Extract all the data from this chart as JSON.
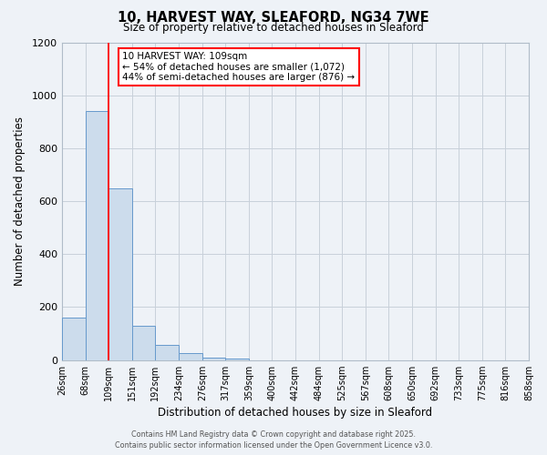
{
  "title": "10, HARVEST WAY, SLEAFORD, NG34 7WE",
  "subtitle": "Size of property relative to detached houses in Sleaford",
  "xlabel": "Distribution of detached houses by size in Sleaford",
  "ylabel": "Number of detached properties",
  "bar_values": [
    160,
    940,
    650,
    130,
    58,
    28,
    10,
    5,
    0,
    0,
    0,
    0,
    0,
    0,
    0,
    0,
    0,
    0,
    0,
    0
  ],
  "bin_edges": [
    26,
    68,
    109,
    151,
    192,
    234,
    276,
    317,
    359,
    400,
    442,
    484,
    525,
    567,
    608,
    650,
    692,
    733,
    775,
    816,
    858
  ],
  "tick_labels": [
    "26sqm",
    "68sqm",
    "109sqm",
    "151sqm",
    "192sqm",
    "234sqm",
    "276sqm",
    "317sqm",
    "359sqm",
    "400sqm",
    "442sqm",
    "484sqm",
    "525sqm",
    "567sqm",
    "608sqm",
    "650sqm",
    "692sqm",
    "733sqm",
    "775sqm",
    "816sqm",
    "858sqm"
  ],
  "bar_color": "#ccdcec",
  "bar_edgecolor": "#6699cc",
  "redline_x": 109,
  "annotation_title": "10 HARVEST WAY: 109sqm",
  "annotation_line1": "← 54% of detached houses are smaller (1,072)",
  "annotation_line2": "44% of semi-detached houses are larger (876) →",
  "annotation_box_color": "white",
  "annotation_box_edgecolor": "red",
  "ylim": [
    0,
    1200
  ],
  "yticks": [
    0,
    200,
    400,
    600,
    800,
    1000,
    1200
  ],
  "background_color": "#eef2f7",
  "grid_color": "#c8d0da",
  "footer1": "Contains HM Land Registry data © Crown copyright and database right 2025.",
  "footer2": "Contains public sector information licensed under the Open Government Licence v3.0."
}
